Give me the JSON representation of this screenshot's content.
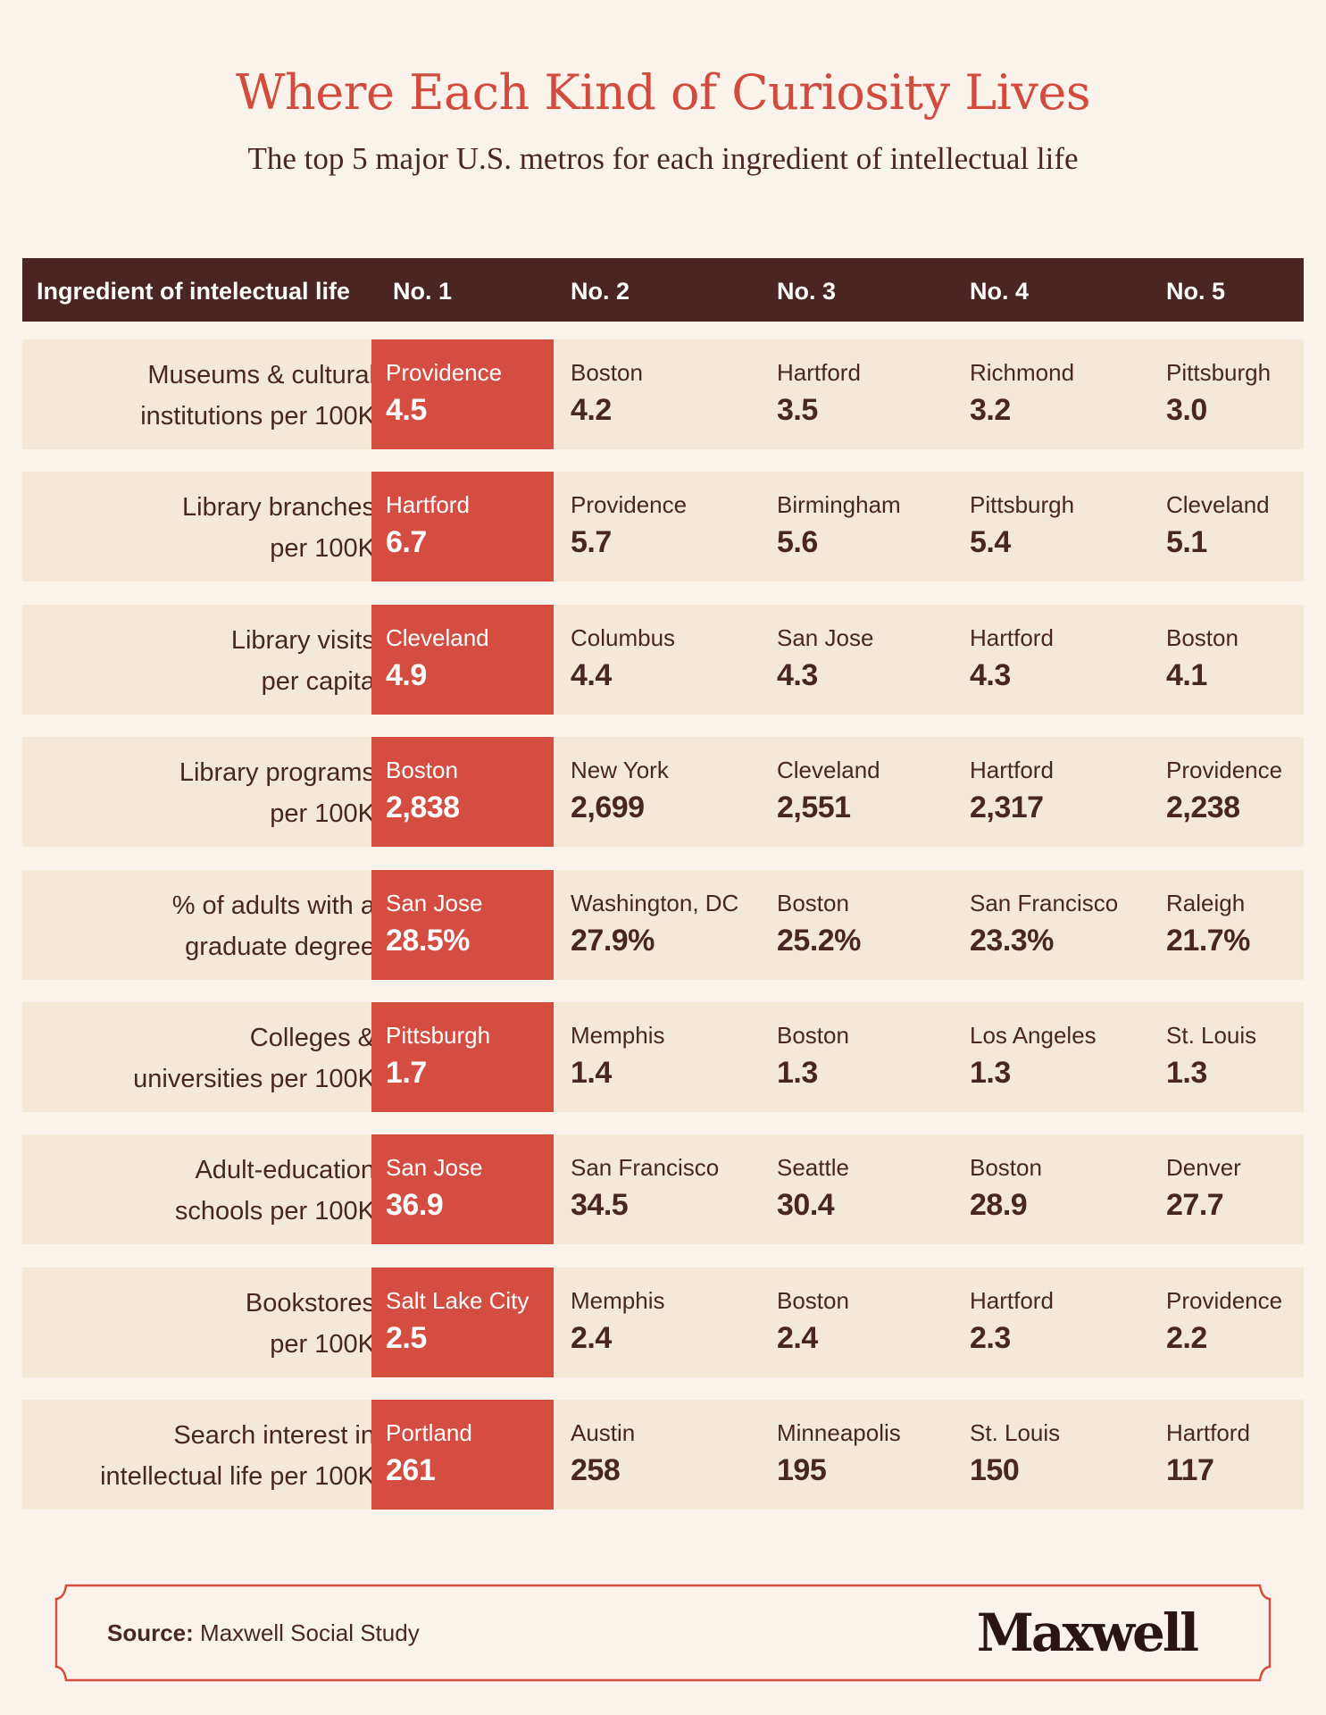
{
  "title": "Where Each Kind of Curiosity Lives",
  "subtitle": "The top 5 major U.S. metros for each ingredient of intellectual life",
  "colors": {
    "background": "#f9f3ec",
    "accent": "#d54c40",
    "header_bg": "#4b2523",
    "row_bg": "#f4e9d7",
    "text": "#4a2623"
  },
  "chart_data": {
    "type": "table",
    "columns": [
      "Ingredient of intelectual life",
      "No. 1",
      "No. 2",
      "No. 3",
      "No. 4",
      "No. 5"
    ],
    "rows": [
      {
        "label": [
          "Museums & cultural",
          "institutions per 100K"
        ],
        "ranks": [
          {
            "city": "Providence",
            "value": "4.5"
          },
          {
            "city": "Boston",
            "value": "4.2"
          },
          {
            "city": "Hartford",
            "value": "3.5"
          },
          {
            "city": "Richmond",
            "value": "3.2"
          },
          {
            "city": "Pittsburgh",
            "value": "3.0"
          }
        ]
      },
      {
        "label": [
          "Library branches",
          "per 100K"
        ],
        "ranks": [
          {
            "city": "Hartford",
            "value": "6.7"
          },
          {
            "city": "Providence",
            "value": "5.7"
          },
          {
            "city": "Birmingham",
            "value": "5.6"
          },
          {
            "city": "Pittsburgh",
            "value": "5.4"
          },
          {
            "city": "Cleveland",
            "value": "5.1"
          }
        ]
      },
      {
        "label": [
          "Library visits",
          "per capita"
        ],
        "ranks": [
          {
            "city": "Cleveland",
            "value": "4.9"
          },
          {
            "city": "Columbus",
            "value": "4.4"
          },
          {
            "city": "San Jose",
            "value": "4.3"
          },
          {
            "city": "Hartford",
            "value": "4.3"
          },
          {
            "city": "Boston",
            "value": "4.1"
          }
        ]
      },
      {
        "label": [
          "Library programs",
          "per 100K"
        ],
        "ranks": [
          {
            "city": "Boston",
            "value": "2,838"
          },
          {
            "city": "New York",
            "value": "2,699"
          },
          {
            "city": "Cleveland",
            "value": "2,551"
          },
          {
            "city": "Hartford",
            "value": "2,317"
          },
          {
            "city": "Providence",
            "value": "2,238"
          }
        ]
      },
      {
        "label": [
          "% of adults with a",
          "graduate degree"
        ],
        "ranks": [
          {
            "city": "San Jose",
            "value": "28.5%"
          },
          {
            "city": "Washington, DC",
            "value": "27.9%"
          },
          {
            "city": "Boston",
            "value": "25.2%"
          },
          {
            "city": "San Francisco",
            "value": "23.3%"
          },
          {
            "city": "Raleigh",
            "value": "21.7%"
          }
        ]
      },
      {
        "label": [
          "Colleges &",
          "universities per 100K"
        ],
        "ranks": [
          {
            "city": "Pittsburgh",
            "value": "1.7"
          },
          {
            "city": "Memphis",
            "value": "1.4"
          },
          {
            "city": "Boston",
            "value": "1.3"
          },
          {
            "city": "Los Angeles",
            "value": "1.3"
          },
          {
            "city": "St. Louis",
            "value": "1.3"
          }
        ]
      },
      {
        "label": [
          "Adult-education",
          "schools per 100K"
        ],
        "ranks": [
          {
            "city": "San Jose",
            "value": "36.9"
          },
          {
            "city": "San Francisco",
            "value": "34.5"
          },
          {
            "city": "Seattle",
            "value": "30.4"
          },
          {
            "city": "Boston",
            "value": "28.9"
          },
          {
            "city": "Denver",
            "value": "27.7"
          }
        ]
      },
      {
        "label": [
          "Bookstores",
          "per 100K"
        ],
        "ranks": [
          {
            "city": "Salt Lake City",
            "value": "2.5"
          },
          {
            "city": "Memphis",
            "value": "2.4"
          },
          {
            "city": "Boston",
            "value": "2.4"
          },
          {
            "city": "Hartford",
            "value": "2.3"
          },
          {
            "city": "Providence",
            "value": "2.2"
          }
        ]
      },
      {
        "label": [
          "Search interest in",
          "intellectual life per 100K"
        ],
        "ranks": [
          {
            "city": "Portland",
            "value": "261"
          },
          {
            "city": "Austin",
            "value": "258"
          },
          {
            "city": "Minneapolis",
            "value": "195"
          },
          {
            "city": "St. Louis",
            "value": "150"
          },
          {
            "city": "Hartford",
            "value": "117"
          }
        ]
      }
    ]
  },
  "footer": {
    "source_label": "Source:",
    "source_text": "Maxwell Social Study",
    "logo": "Maxwell"
  }
}
